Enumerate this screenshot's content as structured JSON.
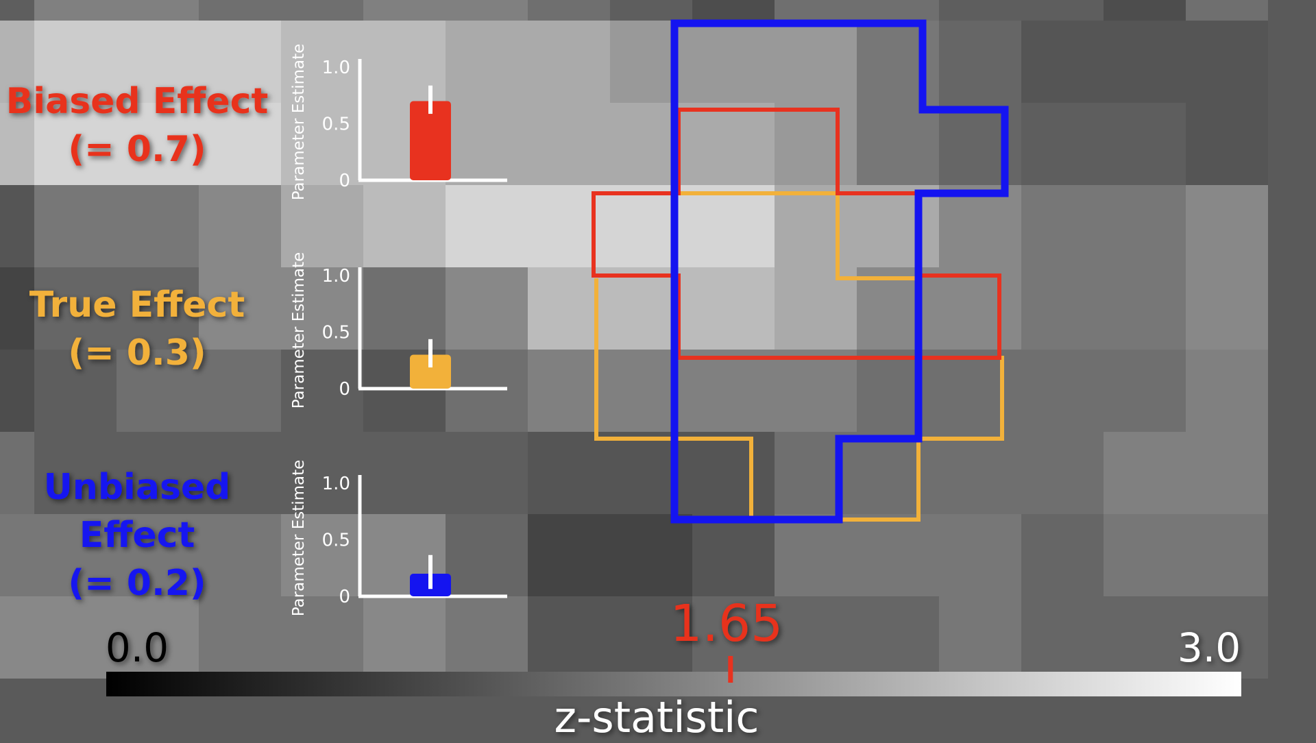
{
  "colors": {
    "biased": "#e8321f",
    "true": "#f2b13a",
    "unbiased": "#1414f0",
    "axis": "#ffffff"
  },
  "effects": [
    {
      "key": "biased",
      "label_lines": [
        "Biased Effect",
        "(= 0.7)"
      ]
    },
    {
      "key": "true",
      "label_lines": [
        "True Effect",
        "(= 0.3)"
      ]
    },
    {
      "key": "unbiased",
      "label_lines": [
        "Unbiased",
        "Effect",
        "(= 0.2)"
      ]
    }
  ],
  "chart_data": [
    {
      "type": "bar",
      "key": "biased",
      "ylabel": "Parameter Estimate",
      "yticks": [
        "0",
        "0.5",
        "1.0"
      ],
      "ylim": [
        0,
        1.0
      ],
      "value": 0.7,
      "error": 0.25
    },
    {
      "type": "bar",
      "key": "true",
      "ylabel": "Parameter Estimate",
      "yticks": [
        "0",
        "0.5",
        "1.0"
      ],
      "ylim": [
        0,
        1.0
      ],
      "value": 0.3,
      "error": 0.25
    },
    {
      "type": "bar",
      "key": "unbiased",
      "ylabel": "Parameter Estimate",
      "yticks": [
        "0",
        "0.5",
        "1.0"
      ],
      "ylim": [
        0,
        1.0
      ],
      "value": 0.2,
      "error": 0.3
    },
    {
      "type": "heatmap",
      "legend": [
        "biased",
        "true",
        "unbiased"
      ],
      "values": [
        [
          1.1,
          1.5,
          1.5,
          1.3,
          1.3,
          1.5,
          1.5,
          1.3,
          1.1,
          0.9,
          1.3,
          1.3,
          1.1,
          1.1,
          0.9,
          1.3
        ],
        [
          2.1,
          2.4,
          2.4,
          2.4,
          2.2,
          2.2,
          2.0,
          2.0,
          1.8,
          1.8,
          1.8,
          1.4,
          1.2,
          1.0,
          1.0,
          1.0
        ],
        [
          2.2,
          2.5,
          2.5,
          2.5,
          2.2,
          2.2,
          2.0,
          2.0,
          2.0,
          2.0,
          1.8,
          1.4,
          1.2,
          1.1,
          1.1,
          1.0
        ],
        [
          1.0,
          1.4,
          1.4,
          1.6,
          2.0,
          2.2,
          2.5,
          2.5,
          2.5,
          2.5,
          2.0,
          2.0,
          1.6,
          1.4,
          1.4,
          1.6
        ],
        [
          0.8,
          1.2,
          1.2,
          1.6,
          1.6,
          1.3,
          1.6,
          2.2,
          2.2,
          2.2,
          2.0,
          1.6,
          1.6,
          1.4,
          1.4,
          1.6
        ],
        [
          0.9,
          1.1,
          1.3,
          1.3,
          1.1,
          1.0,
          1.3,
          1.5,
          1.5,
          1.5,
          1.5,
          1.3,
          1.3,
          1.3,
          1.3,
          1.5
        ],
        [
          1.3,
          1.1,
          1.1,
          1.1,
          1.1,
          1.1,
          1.1,
          1.0,
          1.0,
          1.0,
          1.3,
          1.3,
          1.3,
          1.3,
          1.5,
          1.5
        ],
        [
          1.4,
          1.4,
          1.4,
          1.4,
          1.6,
          1.6,
          1.2,
          0.8,
          0.8,
          1.0,
          1.4,
          1.4,
          1.4,
          1.2,
          1.4,
          1.4
        ],
        [
          1.6,
          1.6,
          1.6,
          1.4,
          1.4,
          1.6,
          1.4,
          1.0,
          1.0,
          1.2,
          1.2,
          1.2,
          1.4,
          1.2,
          1.2,
          1.2
        ]
      ]
    }
  ],
  "colorbar": {
    "min_label": "0.0",
    "max_label": "3.0",
    "min": 0.0,
    "max": 3.0,
    "threshold": 1.65,
    "threshold_label": "1.65",
    "title": "z-statistic",
    "min_label_color": "#000000",
    "max_label_color": "#ffffff"
  }
}
